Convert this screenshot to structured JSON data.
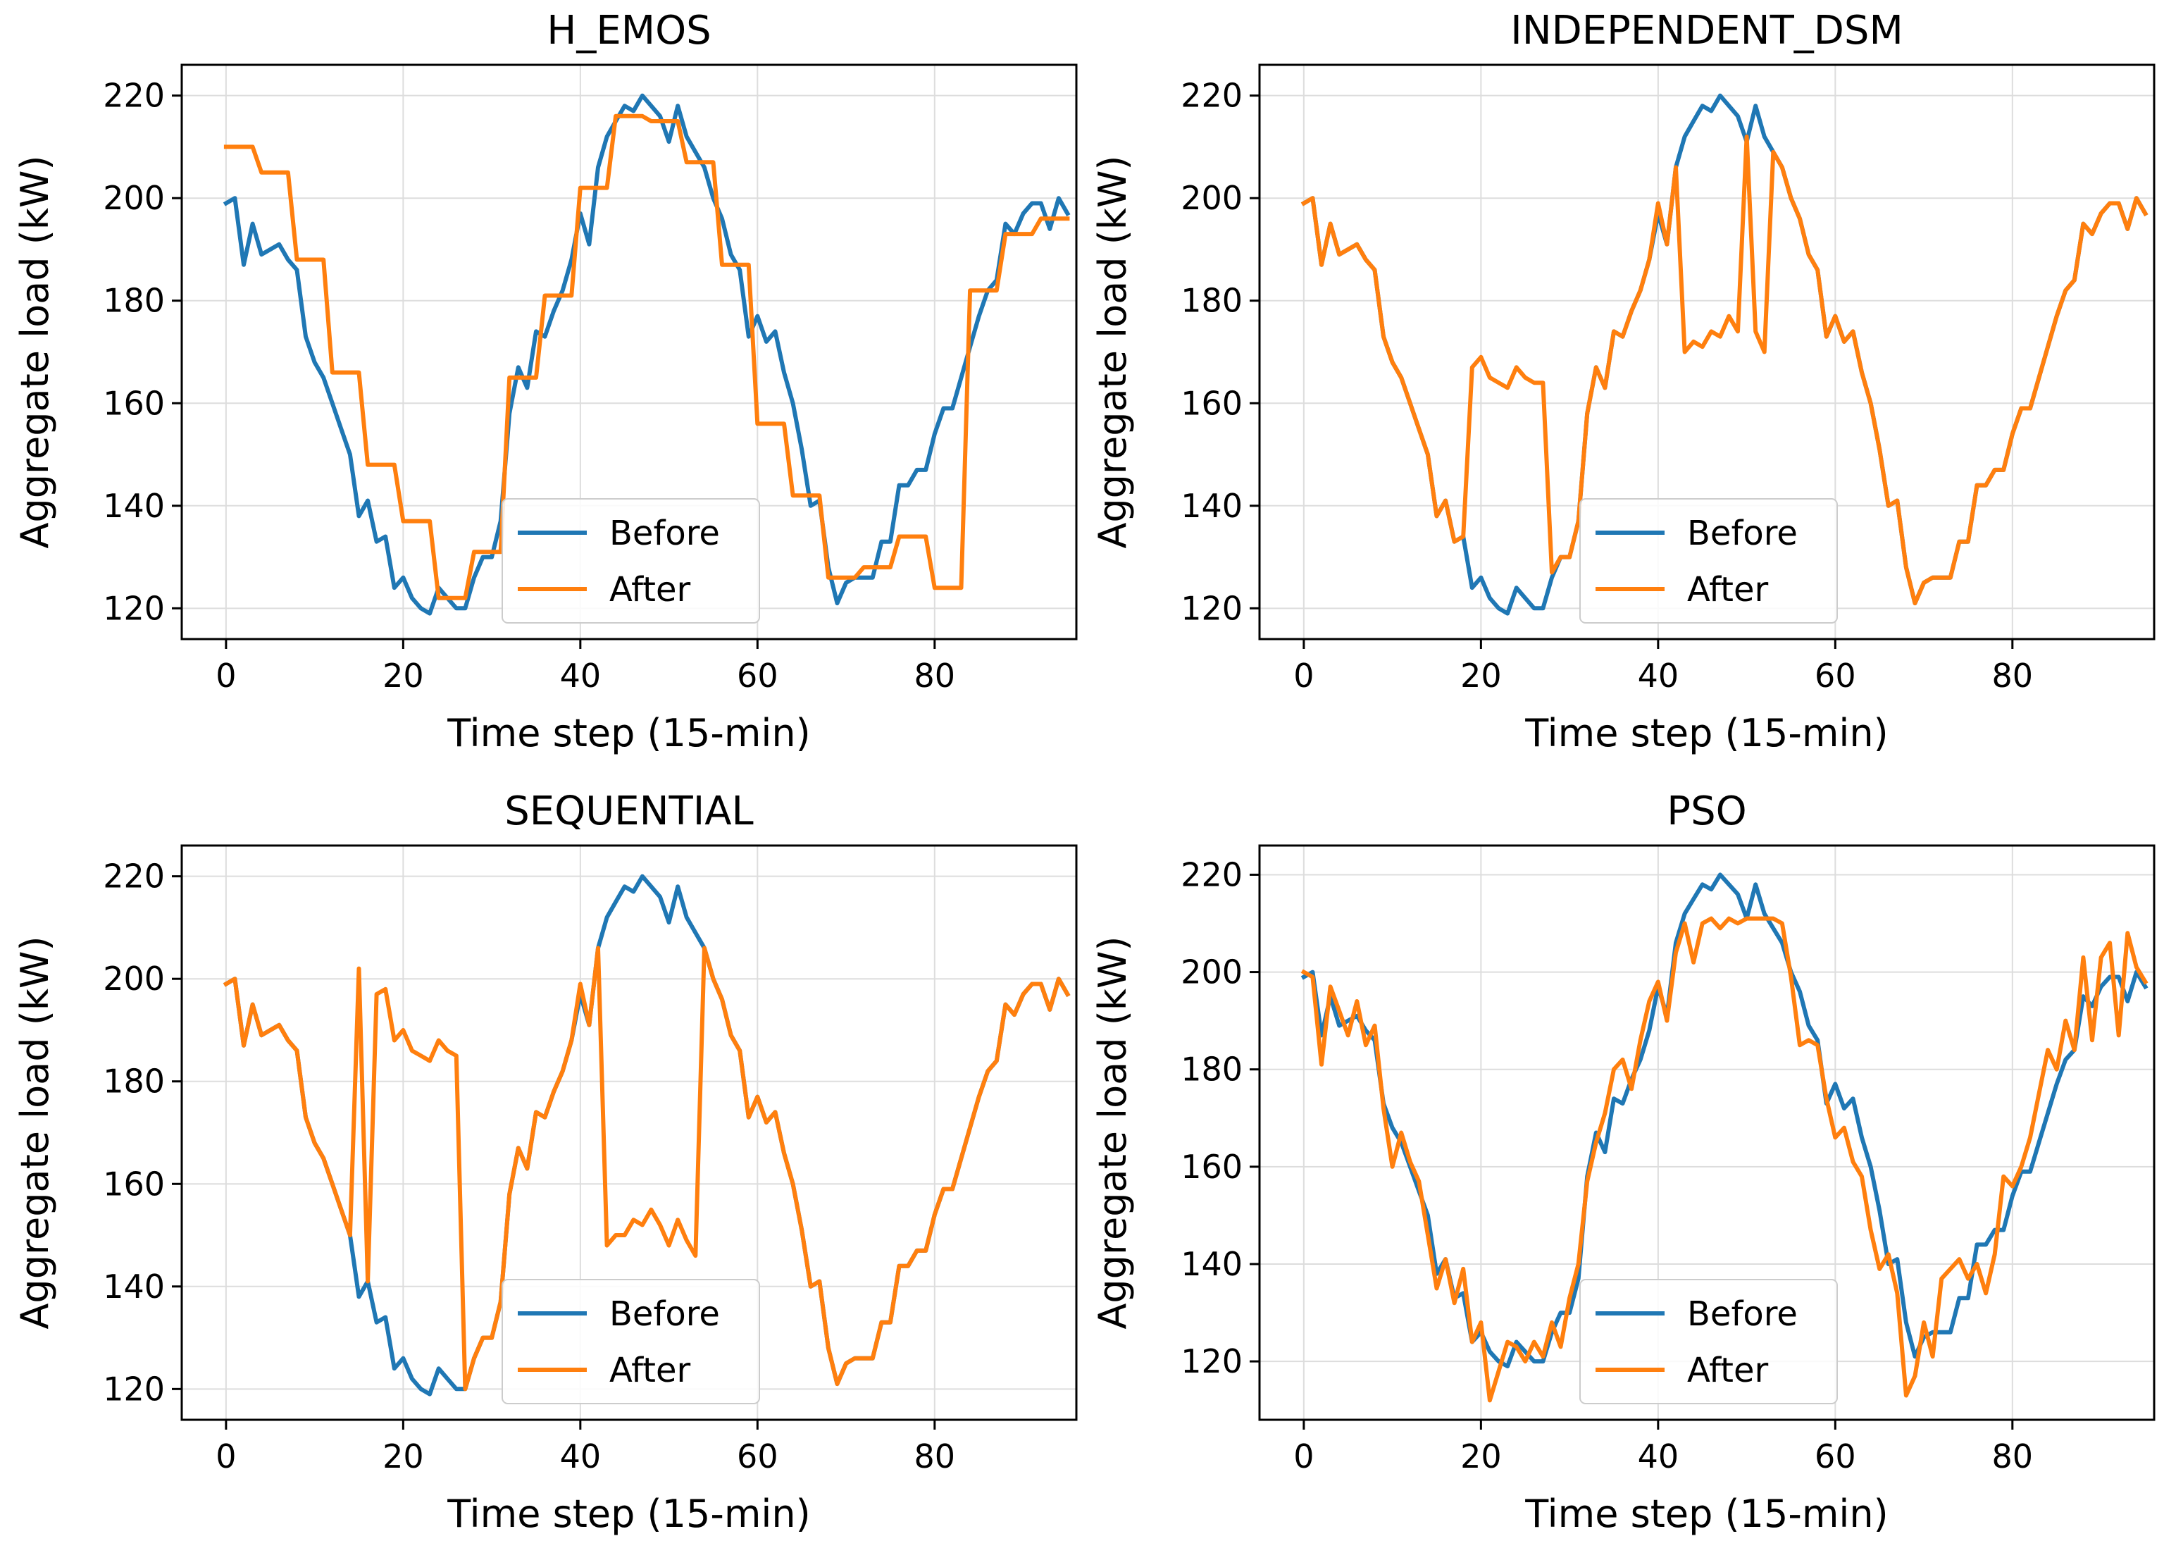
{
  "chart_data": [
    {
      "type": "line",
      "title": "H_EMOS",
      "xlabel": "Time step (15-min)",
      "ylabel": "Aggregate load (kW)",
      "xlim": [
        -5,
        96
      ],
      "ylim": [
        114,
        226
      ],
      "xticks": [
        0,
        20,
        40,
        60,
        80
      ],
      "yticks": [
        120,
        140,
        160,
        180,
        200,
        220
      ],
      "grid": true,
      "legend": {
        "position": "lower-center",
        "entries": [
          "Before",
          "After"
        ]
      },
      "series": [
        {
          "name": "Before",
          "color": "#1f77b4",
          "values": [
            199,
            200,
            187,
            195,
            189,
            190,
            191,
            188,
            186,
            173,
            168,
            165,
            160,
            155,
            150,
            138,
            141,
            133,
            134,
            124,
            126,
            122,
            120,
            119,
            124,
            122,
            120,
            120,
            126,
            130,
            130,
            137,
            158,
            167,
            163,
            174,
            173,
            178,
            182,
            188,
            197,
            191,
            206,
            212,
            215,
            218,
            217,
            220,
            218,
            216,
            211,
            218,
            212,
            209,
            206,
            200,
            196,
            189,
            186,
            173,
            177,
            172,
            174,
            166,
            160,
            151,
            140,
            141,
            128,
            121,
            125,
            126,
            126,
            126,
            133,
            133,
            144,
            144,
            147,
            147,
            154,
            159,
            159,
            165,
            171,
            177,
            182,
            184,
            195,
            193,
            197,
            199,
            199,
            194,
            200,
            197
          ]
        },
        {
          "name": "After",
          "color": "#ff7f0e",
          "values": [
            210,
            210,
            210,
            210,
            205,
            205,
            205,
            205,
            188,
            188,
            188,
            188,
            166,
            166,
            166,
            166,
            148,
            148,
            148,
            148,
            137,
            137,
            137,
            137,
            122,
            122,
            122,
            122,
            131,
            131,
            131,
            131,
            165,
            165,
            165,
            165,
            181,
            181,
            181,
            181,
            202,
            202,
            202,
            202,
            216,
            216,
            216,
            216,
            215,
            215,
            215,
            215,
            207,
            207,
            207,
            207,
            187,
            187,
            187,
            187,
            156,
            156,
            156,
            156,
            142,
            142,
            142,
            142,
            126,
            126,
            126,
            126,
            128,
            128,
            128,
            128,
            134,
            134,
            134,
            134,
            124,
            124,
            124,
            124,
            182,
            182,
            182,
            182,
            193,
            193,
            193,
            193,
            196,
            196,
            196,
            196
          ]
        }
      ]
    },
    {
      "type": "line",
      "title": "INDEPENDENT_DSM",
      "xlabel": "Time step (15-min)",
      "ylabel": "Aggregate load (kW)",
      "xlim": [
        -5,
        96
      ],
      "ylim": [
        114,
        226
      ],
      "xticks": [
        0,
        20,
        40,
        60,
        80
      ],
      "yticks": [
        120,
        140,
        160,
        180,
        200,
        220
      ],
      "grid": true,
      "legend": {
        "position": "lower-center",
        "entries": [
          "Before",
          "After"
        ]
      },
      "series": [
        {
          "name": "Before",
          "color": "#1f77b4",
          "values": [
            199,
            200,
            187,
            195,
            189,
            190,
            191,
            188,
            186,
            173,
            168,
            165,
            160,
            155,
            150,
            138,
            141,
            133,
            134,
            124,
            126,
            122,
            120,
            119,
            124,
            122,
            120,
            120,
            126,
            130,
            130,
            137,
            158,
            167,
            163,
            174,
            173,
            178,
            182,
            188,
            197,
            191,
            206,
            212,
            215,
            218,
            217,
            220,
            218,
            216,
            211,
            218,
            212,
            209,
            206,
            200,
            196,
            189,
            186,
            173,
            177,
            172,
            174,
            166,
            160,
            151,
            140,
            141,
            128,
            121,
            125,
            126,
            126,
            126,
            133,
            133,
            144,
            144,
            147,
            147,
            154,
            159,
            159,
            165,
            171,
            177,
            182,
            184,
            195,
            193,
            197,
            199,
            199,
            194,
            200,
            197
          ]
        },
        {
          "name": "After",
          "color": "#ff7f0e",
          "values": [
            199,
            200,
            187,
            195,
            189,
            190,
            191,
            188,
            186,
            173,
            168,
            165,
            160,
            155,
            150,
            138,
            141,
            133,
            134,
            167,
            169,
            165,
            164,
            163,
            167,
            165,
            164,
            164,
            127,
            130,
            130,
            137,
            158,
            167,
            163,
            174,
            173,
            178,
            182,
            188,
            199,
            191,
            206,
            170,
            172,
            171,
            174,
            173,
            177,
            174,
            212,
            174,
            170,
            209,
            206,
            200,
            196,
            189,
            186,
            173,
            177,
            172,
            174,
            166,
            160,
            151,
            140,
            141,
            128,
            121,
            125,
            126,
            126,
            126,
            133,
            133,
            144,
            144,
            147,
            147,
            154,
            159,
            159,
            165,
            171,
            177,
            182,
            184,
            195,
            193,
            197,
            199,
            199,
            194,
            200,
            197
          ]
        }
      ]
    },
    {
      "type": "line",
      "title": "SEQUENTIAL",
      "xlabel": "Time step (15-min)",
      "ylabel": "Aggregate load (kW)",
      "xlim": [
        -5,
        96
      ],
      "ylim": [
        114,
        226
      ],
      "xticks": [
        0,
        20,
        40,
        60,
        80
      ],
      "yticks": [
        120,
        140,
        160,
        180,
        200,
        220
      ],
      "grid": true,
      "legend": {
        "position": "lower-center",
        "entries": [
          "Before",
          "After"
        ]
      },
      "series": [
        {
          "name": "Before",
          "color": "#1f77b4",
          "values": [
            199,
            200,
            187,
            195,
            189,
            190,
            191,
            188,
            186,
            173,
            168,
            165,
            160,
            155,
            150,
            138,
            141,
            133,
            134,
            124,
            126,
            122,
            120,
            119,
            124,
            122,
            120,
            120,
            126,
            130,
            130,
            137,
            158,
            167,
            163,
            174,
            173,
            178,
            182,
            188,
            197,
            191,
            206,
            212,
            215,
            218,
            217,
            220,
            218,
            216,
            211,
            218,
            212,
            209,
            206,
            200,
            196,
            189,
            186,
            173,
            177,
            172,
            174,
            166,
            160,
            151,
            140,
            141,
            128,
            121,
            125,
            126,
            126,
            126,
            133,
            133,
            144,
            144,
            147,
            147,
            154,
            159,
            159,
            165,
            171,
            177,
            182,
            184,
            195,
            193,
            197,
            199,
            199,
            194,
            200,
            197
          ]
        },
        {
          "name": "After",
          "color": "#ff7f0e",
          "values": [
            199,
            200,
            187,
            195,
            189,
            190,
            191,
            188,
            186,
            173,
            168,
            165,
            160,
            155,
            150,
            202,
            141,
            197,
            198,
            188,
            190,
            186,
            185,
            184,
            188,
            186,
            185,
            120,
            126,
            130,
            130,
            137,
            158,
            167,
            163,
            174,
            173,
            178,
            182,
            188,
            199,
            191,
            206,
            148,
            150,
            150,
            153,
            152,
            155,
            152,
            148,
            153,
            149,
            146,
            206,
            200,
            196,
            189,
            186,
            173,
            177,
            172,
            174,
            166,
            160,
            151,
            140,
            141,
            128,
            121,
            125,
            126,
            126,
            126,
            133,
            133,
            144,
            144,
            147,
            147,
            154,
            159,
            159,
            165,
            171,
            177,
            182,
            184,
            195,
            193,
            197,
            199,
            199,
            194,
            200,
            197
          ]
        }
      ]
    },
    {
      "type": "line",
      "title": "PSO",
      "xlabel": "Time step (15-min)",
      "ylabel": "Aggregate load (kW)",
      "xlim": [
        -5,
        96
      ],
      "ylim": [
        108,
        226
      ],
      "xticks": [
        0,
        20,
        40,
        60,
        80
      ],
      "yticks": [
        120,
        140,
        160,
        180,
        200,
        220
      ],
      "grid": true,
      "legend": {
        "position": "lower-center",
        "entries": [
          "Before",
          "After"
        ]
      },
      "series": [
        {
          "name": "Before",
          "color": "#1f77b4",
          "values": [
            199,
            200,
            187,
            195,
            189,
            190,
            191,
            188,
            186,
            173,
            168,
            165,
            160,
            155,
            150,
            138,
            141,
            133,
            134,
            124,
            126,
            122,
            120,
            119,
            124,
            122,
            120,
            120,
            126,
            130,
            130,
            137,
            158,
            167,
            163,
            174,
            173,
            178,
            182,
            188,
            197,
            191,
            206,
            212,
            215,
            218,
            217,
            220,
            218,
            216,
            211,
            218,
            212,
            209,
            206,
            200,
            196,
            189,
            186,
            173,
            177,
            172,
            174,
            166,
            160,
            151,
            140,
            141,
            128,
            121,
            125,
            126,
            126,
            126,
            133,
            133,
            144,
            144,
            147,
            147,
            154,
            159,
            159,
            165,
            171,
            177,
            182,
            184,
            195,
            193,
            197,
            199,
            199,
            194,
            200,
            197
          ]
        },
        {
          "name": "After",
          "color": "#ff7f0e",
          "values": [
            200,
            199,
            181,
            197,
            192,
            187,
            194,
            185,
            189,
            172,
            160,
            167,
            161,
            157,
            146,
            135,
            141,
            132,
            139,
            124,
            128,
            112,
            118,
            124,
            123,
            120,
            124,
            121,
            128,
            123,
            133,
            140,
            157,
            165,
            171,
            180,
            182,
            176,
            186,
            194,
            198,
            190,
            204,
            210,
            202,
            210,
            211,
            209,
            211,
            210,
            211,
            211,
            211,
            211,
            210,
            199,
            185,
            186,
            185,
            174,
            166,
            168,
            161,
            158,
            147,
            139,
            142,
            134,
            113,
            117,
            128,
            121,
            137,
            139,
            141,
            137,
            140,
            134,
            142,
            158,
            156,
            160,
            166,
            175,
            184,
            180,
            190,
            184,
            203,
            186,
            203,
            206,
            187,
            208,
            201,
            198
          ]
        }
      ]
    }
  ]
}
